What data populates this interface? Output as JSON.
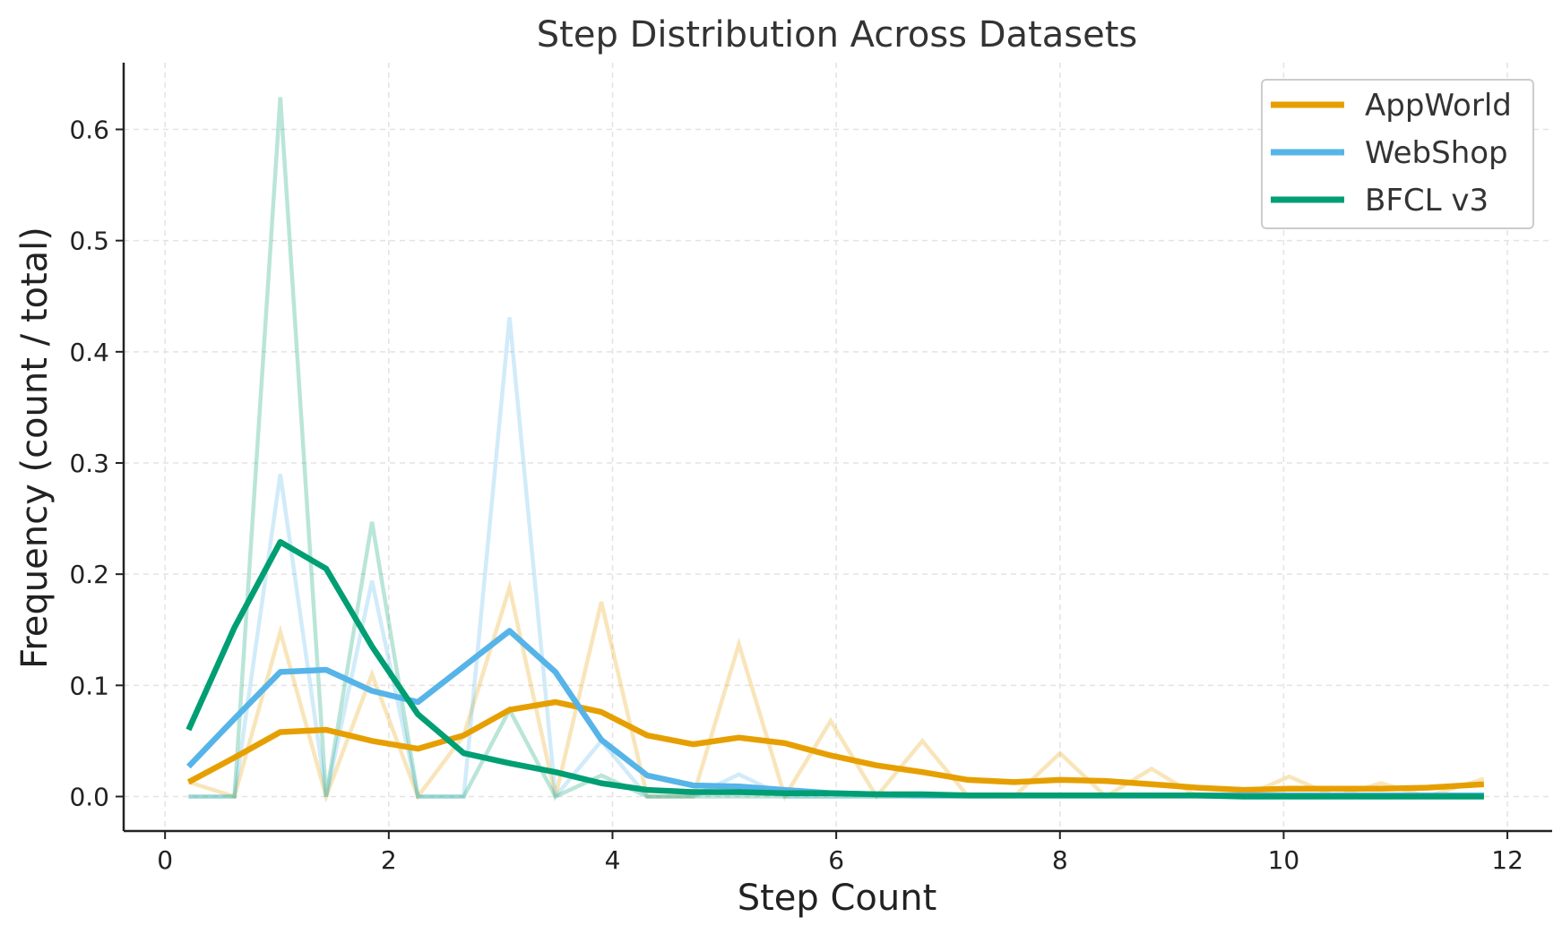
{
  "chart_data": {
    "type": "line",
    "title": "Step Distribution Across Datasets",
    "xlabel": "Step Count",
    "ylabel": "Frequency (count / total)",
    "xlim": [
      -0.37,
      12.4
    ],
    "ylim": [
      -0.031,
      0.66
    ],
    "xticks": [
      0,
      2,
      4,
      6,
      8,
      10,
      12
    ],
    "yticks": [
      0.0,
      0.1,
      0.2,
      0.3,
      0.4,
      0.5,
      0.6
    ],
    "ytick_labels": [
      "0.0",
      "0.1",
      "0.2",
      "0.3",
      "0.4",
      "0.5",
      "0.6"
    ],
    "grid": true,
    "legend_position": "top-right",
    "x": [
      0.21,
      0.62,
      1.03,
      1.44,
      1.85,
      2.26,
      2.67,
      3.08,
      3.49,
      3.9,
      4.31,
      4.72,
      5.13,
      5.54,
      5.95,
      6.36,
      6.77,
      7.18,
      7.59,
      8.0,
      8.41,
      8.82,
      9.23,
      9.64,
      10.05,
      10.46,
      10.87,
      11.28,
      11.79
    ],
    "series": [
      {
        "name": "AppWorld",
        "color": "#E69F00",
        "raw": [
          0.013,
          0.0,
          0.148,
          0.0,
          0.11,
          0.0,
          0.055,
          0.188,
          0.0,
          0.175,
          0.0,
          0.0,
          0.137,
          0.0,
          0.068,
          0.0,
          0.05,
          0.0,
          0.0,
          0.039,
          0.0,
          0.025,
          0.0,
          0.0,
          0.018,
          0.0,
          0.012,
          0.0,
          0.016
        ],
        "smoothed": [
          0.013,
          0.035,
          0.058,
          0.06,
          0.05,
          0.043,
          0.055,
          0.078,
          0.085,
          0.076,
          0.055,
          0.047,
          0.053,
          0.048,
          0.037,
          0.028,
          0.022,
          0.015,
          0.013,
          0.015,
          0.014,
          0.011,
          0.008,
          0.006,
          0.007,
          0.007,
          0.007,
          0.008,
          0.011
        ]
      },
      {
        "name": "WebShop",
        "color": "#56B4E9",
        "raw": [
          0.0,
          0.0,
          0.29,
          0.0,
          0.194,
          0.0,
          0.0,
          0.431,
          0.0,
          0.05,
          0.0,
          0.0,
          0.02,
          0.0,
          0.0,
          0.0,
          0.0,
          0.0,
          0.0,
          0.0,
          0.0,
          0.0,
          0.0,
          0.0,
          0.0,
          0.0,
          0.0,
          0.0,
          0.0
        ],
        "smoothed": [
          0.027,
          0.07,
          0.112,
          0.114,
          0.095,
          0.085,
          0.117,
          0.149,
          0.112,
          0.051,
          0.019,
          0.01,
          0.009,
          0.006,
          0.003,
          0.002,
          0.001,
          0.001,
          0.001,
          0.001,
          0.001,
          0.001,
          0.001,
          0.001,
          0.001,
          0.001,
          0.001,
          0.001,
          0.001
        ]
      },
      {
        "name": "BFCL v3",
        "color": "#009E73",
        "raw": [
          0.0,
          0.0,
          0.629,
          0.0,
          0.247,
          0.0,
          0.0,
          0.078,
          0.0,
          0.019,
          0.0,
          0.0,
          0.0,
          0.0,
          0.0,
          0.0,
          0.0,
          0.0,
          0.0,
          0.0,
          0.0,
          0.0,
          0.0,
          0.0,
          0.0,
          0.0,
          0.0,
          0.0,
          0.0
        ],
        "smoothed": [
          0.06,
          0.152,
          0.229,
          0.205,
          0.135,
          0.074,
          0.039,
          0.03,
          0.022,
          0.012,
          0.006,
          0.004,
          0.004,
          0.003,
          0.003,
          0.002,
          0.002,
          0.001,
          0.001,
          0.001,
          0.001,
          0.001,
          0.001,
          0.0,
          0.0,
          0.0,
          0.0,
          0.0,
          0.0
        ]
      }
    ]
  }
}
